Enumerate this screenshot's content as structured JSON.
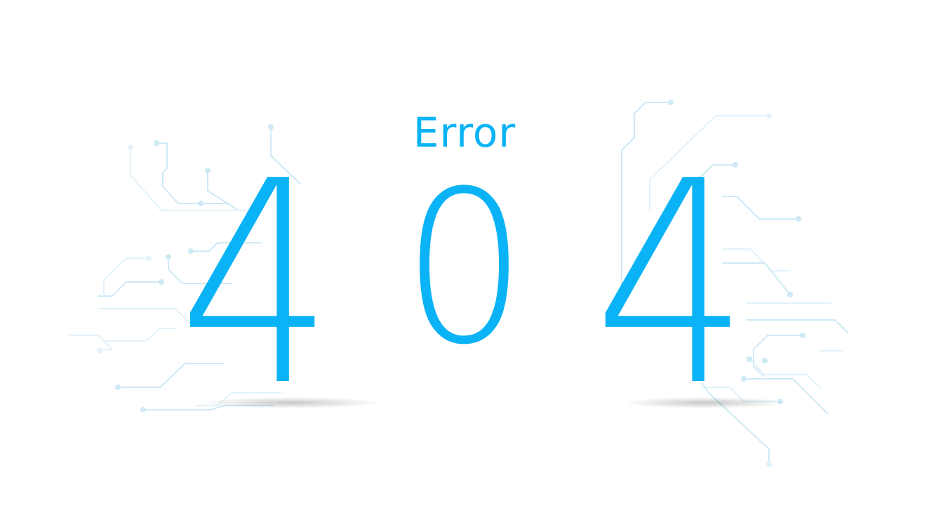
{
  "page": {
    "label": "Error",
    "code_digits": [
      "4",
      "0",
      "4"
    ],
    "accent_color": "#0ab3f5",
    "background_color": "#ffffff",
    "decoration": "circuit-board-traces"
  }
}
